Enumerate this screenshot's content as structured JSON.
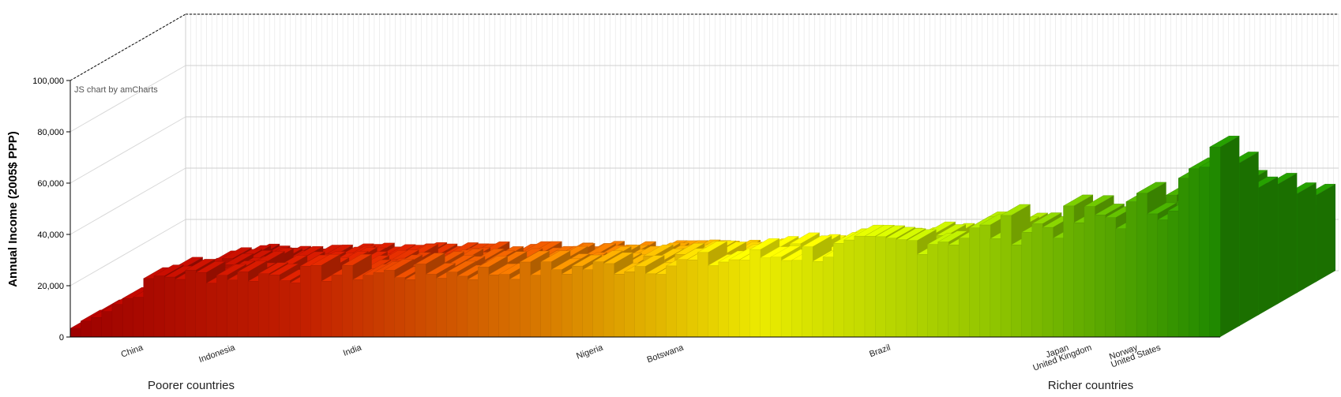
{
  "chart_data": {
    "type": "bar",
    "style": "3d-stacked-column",
    "ylabel": "Annual Income (2005$ PPP)",
    "ylim": [
      0,
      100000
    ],
    "yticks": [
      0,
      20000,
      40000,
      60000,
      80000,
      100000
    ],
    "ytick_labels": [
      "0",
      "20,000",
      "40,000",
      "60,000",
      "80,000",
      "100,000"
    ],
    "grid": true,
    "credit": "JS chart by amCharts",
    "labeled_categories": [
      {
        "name": "China",
        "position": 0.05
      },
      {
        "name": "Indonesia",
        "position": 0.13
      },
      {
        "name": "India",
        "position": 0.24
      },
      {
        "name": "Nigeria",
        "position": 0.45
      },
      {
        "name": "Botswana",
        "position": 0.52
      },
      {
        "name": "Brazil",
        "position": 0.7
      },
      {
        "name": "Japan",
        "position": 0.855
      },
      {
        "name": "United Kingdom",
        "position": 0.875
      },
      {
        "name": "Norway",
        "position": 0.915
      },
      {
        "name": "United States",
        "position": 0.935
      }
    ],
    "groups": {
      "left": "Poorer countries",
      "right": "Richer countries"
    },
    "profile": [
      [
        0,
        2000
      ],
      [
        0.02,
        8000
      ],
      [
        0.05,
        15000
      ],
      [
        0.08,
        24000
      ],
      [
        0.12,
        24000
      ],
      [
        0.22,
        24500
      ],
      [
        0.35,
        25000
      ],
      [
        0.45,
        27000
      ],
      [
        0.55,
        29000
      ],
      [
        0.62,
        32000
      ],
      [
        0.7,
        35000
      ],
      [
        0.78,
        40000
      ],
      [
        0.86,
        44000
      ],
      [
        0.92,
        48000
      ],
      [
        0.96,
        55000
      ],
      [
        0.985,
        65000
      ],
      [
        1.0,
        78000
      ]
    ],
    "color_stops": [
      "#a50000",
      "#cc2000",
      "#e27a00",
      "#f7f700",
      "#9ad000",
      "#1f8f00"
    ]
  }
}
